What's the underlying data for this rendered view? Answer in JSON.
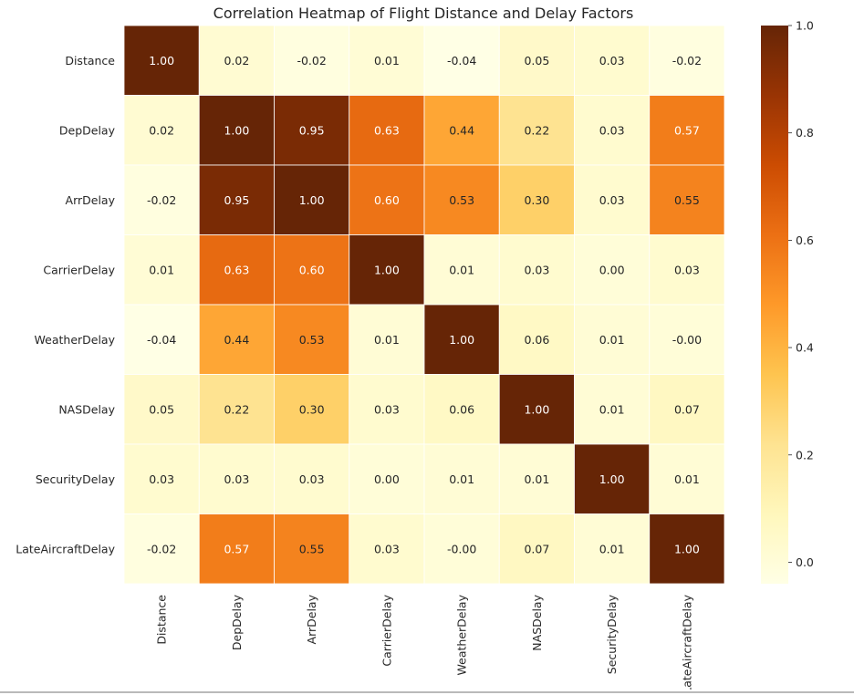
{
  "chart_data": {
    "type": "heatmap",
    "title": "Correlation Heatmap of Flight Distance and Delay Factors",
    "xlabel": "",
    "ylabel": "",
    "row_labels": [
      "Distance",
      "DepDelay",
      "ArrDelay",
      "CarrierDelay",
      "WeatherDelay",
      "NASDelay",
      "SecurityDelay",
      "LateAircraftDelay"
    ],
    "col_labels": [
      "Distance",
      "DepDelay",
      "ArrDelay",
      "CarrierDelay",
      "WeatherDelay",
      "NASDelay",
      "SecurityDelay",
      "LateAircraftDelay"
    ],
    "values": [
      [
        1.0,
        0.02,
        -0.02,
        0.01,
        -0.04,
        0.05,
        0.03,
        -0.02
      ],
      [
        0.02,
        1.0,
        0.95,
        0.63,
        0.44,
        0.22,
        0.03,
        0.57
      ],
      [
        -0.02,
        0.95,
        1.0,
        0.6,
        0.53,
        0.3,
        0.03,
        0.55
      ],
      [
        0.01,
        0.63,
        0.6,
        1.0,
        0.01,
        0.03,
        0.0,
        0.03
      ],
      [
        -0.04,
        0.44,
        0.53,
        0.01,
        1.0,
        0.06,
        0.01,
        -0.0
      ],
      [
        0.05,
        0.22,
        0.3,
        0.03,
        0.06,
        1.0,
        0.01,
        0.07
      ],
      [
        0.03,
        0.03,
        0.03,
        0.0,
        0.01,
        0.01,
        1.0,
        0.01
      ],
      [
        -0.02,
        0.57,
        0.55,
        0.03,
        -0.0,
        0.07,
        0.01,
        1.0
      ]
    ],
    "cell_labels": [
      [
        "1.00",
        "0.02",
        "-0.02",
        "0.01",
        "-0.04",
        "0.05",
        "0.03",
        "-0.02"
      ],
      [
        "0.02",
        "1.00",
        "0.95",
        "0.63",
        "0.44",
        "0.22",
        "0.03",
        "0.57"
      ],
      [
        "-0.02",
        "0.95",
        "1.00",
        "0.60",
        "0.53",
        "0.30",
        "0.03",
        "0.55"
      ],
      [
        "0.01",
        "0.63",
        "0.60",
        "1.00",
        "0.01",
        "0.03",
        "0.00",
        "0.03"
      ],
      [
        "-0.04",
        "0.44",
        "0.53",
        "0.01",
        "1.00",
        "0.06",
        "0.01",
        "-0.00"
      ],
      [
        "0.05",
        "0.22",
        "0.30",
        "0.03",
        "0.06",
        "1.00",
        "0.01",
        "0.07"
      ],
      [
        "0.03",
        "0.03",
        "0.03",
        "0.00",
        "0.01",
        "0.01",
        "1.00",
        "0.01"
      ],
      [
        "-0.02",
        "0.57",
        "0.55",
        "0.03",
        "-0.00",
        "0.07",
        "0.01",
        "1.00"
      ]
    ],
    "colorbar": {
      "vmin": -0.04,
      "vmax": 1.0,
      "ticks": [
        0.0,
        0.2,
        0.4,
        0.6,
        0.8,
        1.0
      ],
      "tick_labels": [
        "0.0",
        "0.2",
        "0.4",
        "0.6",
        "0.8",
        "1.0"
      ]
    },
    "colormap": {
      "name": "YlOrBr",
      "stops": [
        "#ffffe5",
        "#fff7bc",
        "#fee391",
        "#fec44f",
        "#fe9929",
        "#ec7014",
        "#cc4c02",
        "#993404",
        "#662506"
      ]
    },
    "grid": false,
    "legend": "colorbar-right"
  }
}
